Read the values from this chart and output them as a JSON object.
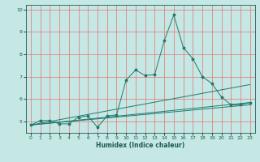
{
  "title": "",
  "xlabel": "Humidex (Indice chaleur)",
  "xlim": [
    -0.5,
    23.5
  ],
  "ylim": [
    4.5,
    10.2
  ],
  "yticks": [
    5,
    6,
    7,
    8,
    9,
    10
  ],
  "xticks": [
    0,
    1,
    2,
    3,
    4,
    5,
    6,
    7,
    8,
    9,
    10,
    11,
    12,
    13,
    14,
    15,
    16,
    17,
    18,
    19,
    20,
    21,
    22,
    23
  ],
  "background_color": "#c5e8e5",
  "grid_color": "#e87070",
  "line_color": "#1e7b6e",
  "series": {
    "main": {
      "x": [
        0,
        1,
        2,
        3,
        4,
        5,
        6,
        7,
        8,
        9,
        10,
        11,
        12,
        13,
        14,
        15,
        16,
        17,
        18,
        19,
        20,
        21,
        22,
        23
      ],
      "y": [
        4.85,
        5.05,
        5.05,
        4.9,
        4.9,
        5.2,
        5.25,
        4.75,
        5.25,
        5.3,
        6.85,
        7.3,
        7.05,
        7.1,
        8.6,
        9.75,
        8.3,
        7.8,
        7.0,
        6.7,
        6.1,
        5.75,
        5.75,
        5.85
      ]
    },
    "trend1": {
      "x": [
        0,
        23
      ],
      "y": [
        4.85,
        5.85
      ]
    },
    "trend2": {
      "x": [
        0,
        23
      ],
      "y": [
        4.85,
        5.75
      ]
    },
    "trend3": {
      "x": [
        0,
        23
      ],
      "y": [
        4.85,
        6.65
      ]
    }
  }
}
